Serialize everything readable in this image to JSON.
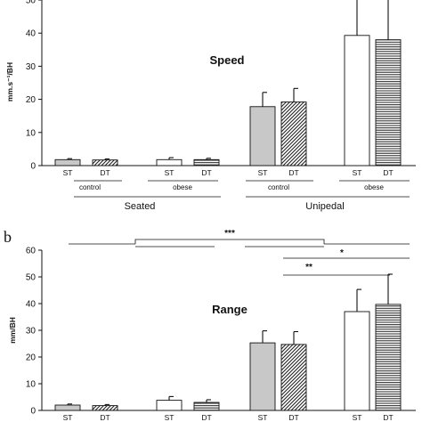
{
  "chart_data": [
    {
      "type": "bar",
      "panel_label": "",
      "title": "Speed",
      "ylabel": "mm.s⁻¹/BH",
      "xlabel": "",
      "ylim": [
        0,
        50
      ],
      "yticks": [
        0,
        10,
        20,
        30,
        40,
        50
      ],
      "grid": false,
      "categories": [
        "ST",
        "DT",
        "ST",
        "DT",
        "ST",
        "DT",
        "ST",
        "DT"
      ],
      "values": [
        1.8,
        1.7,
        1.8,
        1.8,
        17.8,
        19.2,
        39.3,
        38.0
      ],
      "errors": [
        0.3,
        0.3,
        0.6,
        0.4,
        4.3,
        4.1,
        17.0,
        15.3
      ],
      "fills": [
        "grey",
        "hatch-diag",
        "white",
        "hatch-horiz",
        "grey",
        "hatch-diag",
        "white",
        "hatch-horiz"
      ],
      "groups": [
        "control",
        "obese",
        "control",
        "obese"
      ],
      "conditions": [
        "Seated",
        "Unipedal"
      ],
      "significance": []
    },
    {
      "type": "bar",
      "panel_label": "b",
      "title": "Range",
      "ylabel": "mm/BH",
      "xlabel": "",
      "ylim": [
        0,
        60
      ],
      "yticks": [
        0,
        10,
        20,
        30,
        40,
        50,
        60
      ],
      "grid": false,
      "categories": [
        "ST",
        "DT",
        "ST",
        "DT",
        "ST",
        "DT",
        "ST",
        "DT"
      ],
      "values": [
        2.0,
        1.8,
        3.8,
        3.0,
        25.3,
        24.7,
        37.0,
        39.7
      ],
      "errors": [
        0.4,
        0.4,
        1.4,
        1.0,
        4.5,
        4.8,
        8.3,
        11.3
      ],
      "fills": [
        "grey",
        "hatch-diag",
        "white",
        "hatch-horiz",
        "grey",
        "hatch-diag",
        "white",
        "hatch-horiz"
      ],
      "groups": [],
      "conditions": [],
      "significance": [
        {
          "label": "***",
          "from": "seated",
          "to": "unipedal"
        },
        {
          "label": "*",
          "from": "unipedal control",
          "to": "unipedal obese"
        },
        {
          "label": "**",
          "from": "unipedal control ST",
          "to": "unipedal obese DT"
        }
      ]
    }
  ],
  "colors": {
    "grey_fill": "#c8c8c8",
    "white_fill": "#ffffff",
    "ink": "#111111"
  }
}
